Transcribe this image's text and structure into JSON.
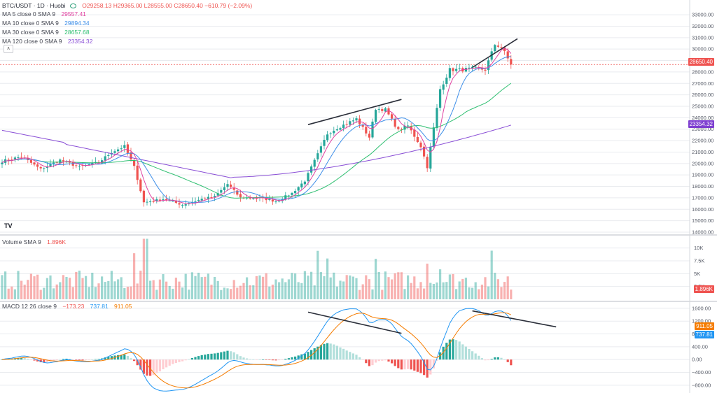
{
  "header": {
    "symbol": "BTC/USDT · 1D · Huobi",
    "ohlc": "O29258.13 H29365.00 L28555.00 C28650.40 −610.79 (−2.09%)",
    "ma": [
      {
        "label": "MA 5 close 0 SMA 9",
        "value": "29557.41",
        "color": "#e040a0"
      },
      {
        "label": "MA 10 close 0 SMA 9",
        "value": "29894.34",
        "color": "#3d8ee8"
      },
      {
        "label": "MA 30 close 0 SMA 9",
        "value": "28657.68",
        "color": "#2fbf71"
      },
      {
        "label": "MA 120 close 0 SMA 9",
        "value": "23354.32",
        "color": "#8a4fd6"
      }
    ],
    "volume": "Volume SMA 9",
    "volume_value": "1.896K",
    "macd": "MACD 12 26 close 9",
    "macd_values": [
      "−173.23",
      "737.81",
      "911.05"
    ]
  },
  "price_tags": [
    {
      "value": "28650.40",
      "color": "#ef5350"
    },
    {
      "value": "23354.32",
      "color": "#7e3fd0"
    }
  ],
  "volume_tag": {
    "value": "1.896K",
    "color": "#ef5350"
  },
  "macd_tags": [
    {
      "value": "911.05",
      "color": "#f57c00"
    },
    {
      "value": "737.81",
      "color": "#2196f3"
    }
  ],
  "colors": {
    "up": "#26a69a",
    "down": "#ef5350",
    "grid": "#e9ebef",
    "axis_text": "#555a66"
  },
  "chart_data": {
    "type": "candlestick",
    "title": "",
    "x_count": 165,
    "panels": [
      {
        "name": "price",
        "y_ticks": [
          "33000.00",
          "32000.00",
          "31000.00",
          "30000.00",
          "29000.00",
          "28000.00",
          "27000.00",
          "26000.00",
          "25000.00",
          "24000.00",
          "23000.00",
          "22000.00",
          "21000.00",
          "20000.00",
          "19000.00",
          "18000.00",
          "17000.00",
          "16000.00",
          "15000.00",
          "14000.00"
        ],
        "ylim": [
          14000,
          33800
        ],
        "anchors": [
          [
            0,
            20200
          ],
          [
            6,
            20600
          ],
          [
            12,
            19500
          ],
          [
            18,
            20300
          ],
          [
            24,
            19700
          ],
          [
            30,
            20100
          ],
          [
            34,
            21000
          ],
          [
            38,
            21500
          ],
          [
            41,
            19700
          ],
          [
            44,
            16600
          ],
          [
            50,
            16900
          ],
          [
            56,
            16400
          ],
          [
            62,
            16900
          ],
          [
            66,
            17100
          ],
          [
            70,
            18200
          ],
          [
            74,
            17000
          ],
          [
            80,
            17000
          ],
          [
            85,
            16700
          ],
          [
            90,
            17400
          ],
          [
            94,
            18500
          ],
          [
            98,
            20800
          ],
          [
            101,
            22600
          ],
          [
            104,
            23100
          ],
          [
            110,
            23900
          ],
          [
            114,
            22300
          ],
          [
            116,
            24800
          ],
          [
            119,
            24700
          ],
          [
            123,
            22900
          ],
          [
            126,
            23300
          ],
          [
            130,
            21500
          ],
          [
            132,
            19700
          ],
          [
            136,
            26500
          ],
          [
            139,
            28200
          ],
          [
            143,
            28200
          ],
          [
            147,
            28300
          ],
          [
            150,
            28200
          ],
          [
            153,
            30400
          ],
          [
            155,
            30200
          ],
          [
            158,
            28650
          ]
        ],
        "ma_series": [
          "MA 5",
          "MA 10",
          "MA 30",
          "MA 120"
        ],
        "trendlines": [
          [
            [
              95,
              23400
            ],
            [
              124,
              25600
            ]
          ],
          [
            [
              146,
              28400
            ],
            [
              160,
              30900
            ]
          ]
        ],
        "current_price": 28650.4
      },
      {
        "name": "volume",
        "y_ticks": [
          "10K",
          "7.5K",
          "5K",
          "2.5K"
        ],
        "ylim": [
          0,
          12000
        ]
      },
      {
        "name": "macd",
        "y_ticks": [
          "1600.00",
          "1200.00",
          "800.00",
          "400.00",
          "0.00",
          "−400.00",
          "−800.00"
        ],
        "ylim": [
          -1000,
          1750
        ],
        "trendlines": [
          [
            [
              95,
              1480
            ],
            [
              124,
              820
            ]
          ],
          [
            [
              146,
              1520
            ],
            [
              172,
              1020
            ]
          ]
        ]
      }
    ]
  }
}
